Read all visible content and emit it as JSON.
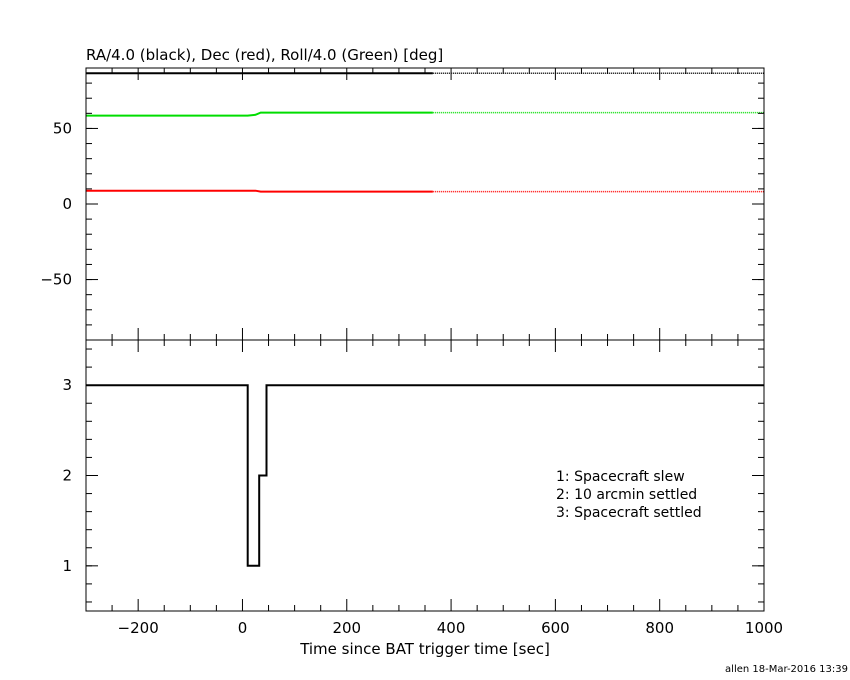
{
  "chart_data": [
    {
      "type": "line",
      "title": "RA/4.0 (black), Dec (red), Roll/4.0 (Green) [deg]",
      "xlim": [
        -300,
        1000
      ],
      "ylim": [
        -90,
        90
      ],
      "yticks": [
        -50,
        0,
        50
      ],
      "ytick_labels": [
        "−50",
        "0",
        "50"
      ],
      "series": [
        {
          "color": "#000000",
          "x": [
            -300,
            365
          ],
          "y": [
            86.5,
            86.5
          ],
          "dotted_x": [
            365,
            1000
          ],
          "dotted_y": [
            86.5,
            86.5
          ]
        },
        {
          "color": "#00dd00",
          "x": [
            -300,
            10,
            25,
            35,
            365
          ],
          "y": [
            58.5,
            58.5,
            59.0,
            60.5,
            60.5
          ],
          "dotted_x": [
            365,
            1000
          ],
          "dotted_y": [
            60.5,
            60.5
          ]
        },
        {
          "color": "#ff0000",
          "x": [
            -300,
            25,
            35,
            365
          ],
          "y": [
            8.8,
            8.8,
            8.2,
            8.2
          ],
          "dotted_x": [
            365,
            1000
          ],
          "dotted_y": [
            8.2,
            8.2
          ]
        }
      ]
    },
    {
      "type": "line",
      "xlim": [
        -300,
        1000
      ],
      "ylim": [
        0.5,
        3.5
      ],
      "yticks": [
        1,
        2,
        3
      ],
      "ytick_labels": [
        "1",
        "2",
        "3"
      ],
      "xticks": [
        -200,
        0,
        200,
        400,
        600,
        800,
        1000
      ],
      "xtick_labels": [
        "−200",
        "0",
        "200",
        "400",
        "600",
        "800",
        "1000"
      ],
      "xlabel": "Time since BAT trigger time [sec]",
      "series": [
        {
          "color": "#000000",
          "step": true,
          "x": [
            -300,
            10,
            10,
            32,
            32,
            46,
            46,
            1000
          ],
          "y": [
            3,
            3,
            1,
            1,
            2,
            2,
            3,
            3
          ]
        }
      ],
      "annotations": [
        "1: Spacecraft slew",
        "2: 10 arcmin settled",
        "3: Spacecraft settled"
      ]
    }
  ],
  "footer": "allen 18-Mar-2016 13:39"
}
